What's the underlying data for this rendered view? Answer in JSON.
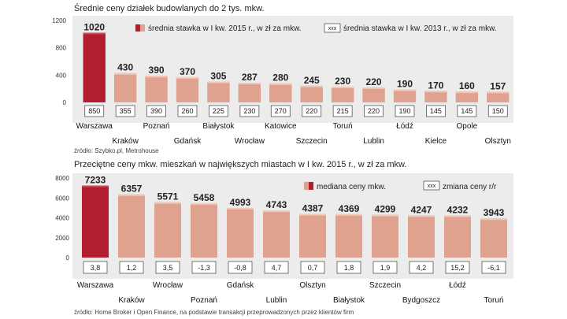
{
  "colors": {
    "highlight": "#b01e2f",
    "bar": "#dfa28e",
    "bar_light": "#f0c9bb",
    "panel": "#ececec",
    "box_stroke": "#555555"
  },
  "chart_data": [
    {
      "type": "bar",
      "title": "Średnie ceny działek budowlanych do 2 tys. mkw.",
      "categories": [
        "Warszawa",
        "Kraków",
        "Poznań",
        "Gdańsk",
        "Białystok",
        "Wrocław",
        "Katowice",
        "Szczecin",
        "Toruń",
        "Lublin",
        "Łódź",
        "Kielce",
        "Opole",
        "Olsztyn"
      ],
      "values": [
        1020,
        430,
        390,
        370,
        305,
        287,
        280,
        245,
        230,
        220,
        190,
        170,
        160,
        157
      ],
      "value_labels": [
        "1020",
        "430",
        "390",
        "370",
        "305",
        "287",
        "280",
        "245",
        "230",
        "220",
        "190",
        "170",
        "160",
        "157"
      ],
      "secondary_values": [
        850,
        355,
        390,
        260,
        225,
        230,
        270,
        220,
        215,
        220,
        190,
        145,
        145,
        150
      ],
      "secondary_labels": [
        "850",
        "355",
        "390",
        "260",
        "225",
        "230",
        "270",
        "220",
        "215",
        "220",
        "190",
        "145",
        "145",
        "150"
      ],
      "yticks": [
        0,
        400,
        800,
        1200
      ],
      "ylim": [
        0,
        1200
      ],
      "legend": {
        "primary": "średnia stawka w I kw. 2015 r., w zł za mkw.",
        "secondary_box": "xxx",
        "secondary": "średnia stawka w I kw. 2013 r., w zł za mkw."
      },
      "source": "źródło: Szybko.pl, Metrohouse"
    },
    {
      "type": "bar",
      "title": "Przeciętne ceny mkw. mieszkań w największych miastach w I kw. 2015 r., w zł za mkw.",
      "categories": [
        "Warszawa",
        "Kraków",
        "Wrocław",
        "Poznań",
        "Gdańsk",
        "Lublin",
        "Olsztyn",
        "Białystok",
        "Szczecin",
        "Bydgoszcz",
        "Łódź",
        "Toruń"
      ],
      "values": [
        7233,
        6357,
        5571,
        5458,
        4993,
        4743,
        4387,
        4369,
        4299,
        4247,
        4232,
        3943
      ],
      "value_labels": [
        "7233",
        "6357",
        "5571",
        "5458",
        "4993",
        "4743",
        "4387",
        "4369",
        "4299",
        "4247",
        "4232",
        "3943"
      ],
      "changes": [
        "3,8",
        "1,2",
        "3,5",
        "-1,3",
        "-0,8",
        "4,7",
        "0,7",
        "1,8",
        "1,9",
        "4,2",
        "15,2",
        "-6,1"
      ],
      "yticks": [
        0,
        2000,
        4000,
        6000,
        8000
      ],
      "ylim": [
        0,
        8000
      ],
      "legend": {
        "primary": "mediana ceny mkw.",
        "secondary_box": "xxx",
        "secondary": "zmiana ceny r/r"
      },
      "source": "źródło: Home Broker i Open Finance, na podstawie transakcji przeprowadzonych przez klientów firm"
    }
  ]
}
